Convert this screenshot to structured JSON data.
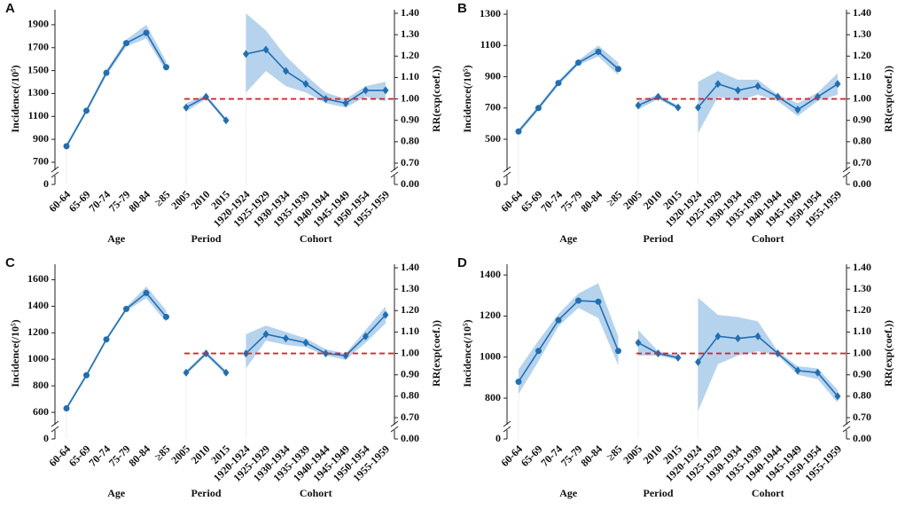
{
  "chart_data": [
    {
      "type": "apc",
      "panel": "A",
      "ylabel": "Incidence(/10⁵)",
      "y2label": "RR(exp(coef.))",
      "ylim": [
        692,
        2000
      ],
      "yticks": [
        700,
        900,
        1100,
        1300,
        1500,
        1700,
        1900
      ],
      "ybreak_tick": 0,
      "y2lim": [
        0.7,
        1.4
      ],
      "y2ticks": [
        {
          "value": 0.7,
          "label": "0.70"
        },
        {
          "value": 0.8,
          "label": "0.80"
        },
        {
          "value": 0.9,
          "label": "0.90"
        },
        {
          "value": 1.0,
          "label": "1.00"
        },
        {
          "value": 1.1,
          "label": "1.10"
        },
        {
          "value": 1.2,
          "label": "1.20"
        },
        {
          "value": 1.3,
          "label": "1.30"
        },
        {
          "value": 1.4,
          "label": "1.40"
        }
      ],
      "y2break_tick": {
        "value": 0,
        "label": "0.00"
      },
      "reference_line": 1,
      "color": "#1f6fb5",
      "band_color": "#a9cbea",
      "reference_color": "#d62728",
      "groups": [
        {
          "label": "Age",
          "axis": "y",
          "categories": [
            "60-64",
            "65-69",
            "70-74",
            "75-79",
            "80-84",
            "≥85"
          ],
          "values": [
            840,
            1150,
            1480,
            1740,
            1830,
            1530
          ],
          "lower": [
            820,
            1130,
            1455,
            1710,
            1780,
            1490
          ],
          "upper": [
            860,
            1170,
            1505,
            1770,
            1900,
            1580
          ]
        },
        {
          "label": "Period",
          "axis": "y2",
          "categories": [
            "2005",
            "2010",
            "2015"
          ],
          "values": [
            0.96,
            1.01,
            0.9
          ],
          "lower": [
            0.94,
            1.0,
            0.89
          ],
          "upper": [
            0.98,
            1.02,
            0.91
          ]
        },
        {
          "label": "Cohort",
          "axis": "y2",
          "categories": [
            "1920-1924",
            "1925-1929",
            "1930-1934",
            "1935-1939",
            "1940-1944",
            "1945-1949",
            "1950-1954",
            "1955-1959"
          ],
          "values": [
            1.21,
            1.23,
            1.13,
            1.07,
            1.0,
            0.98,
            1.04,
            1.04
          ],
          "lower": [
            1.03,
            1.13,
            1.06,
            1.03,
            0.98,
            0.96,
            1.01,
            0.99
          ],
          "upper": [
            1.4,
            1.32,
            1.2,
            1.11,
            1.03,
            1.0,
            1.06,
            1.08
          ]
        }
      ]
    },
    {
      "type": "apc",
      "panel": "B",
      "ylabel": "Incidence(/10⁵)",
      "y2label": "RR(exp(coef.))",
      "ylim": [
        347,
        1306
      ],
      "yticks": [
        500,
        700,
        900,
        1100,
        1300
      ],
      "ybreak_tick": 0,
      "y2lim": [
        0.7,
        1.4
      ],
      "y2ticks": [
        {
          "value": 0.7,
          "label": "0.70"
        },
        {
          "value": 0.8,
          "label": "0.80"
        },
        {
          "value": 0.9,
          "label": "0.90"
        },
        {
          "value": 1.0,
          "label": "1.00"
        },
        {
          "value": 1.1,
          "label": "1.10"
        },
        {
          "value": 1.2,
          "label": "1.20"
        },
        {
          "value": 1.3,
          "label": "1.30"
        },
        {
          "value": 1.4,
          "label": "1.40"
        }
      ],
      "y2break_tick": {
        "value": 0,
        "label": "0.00"
      },
      "reference_line": 1,
      "color": "#1f6fb5",
      "band_color": "#a9cbea",
      "reference_color": "#d62728",
      "groups": [
        {
          "label": "Age",
          "axis": "y",
          "categories": [
            "60-64",
            "65-69",
            "70-74",
            "75-79",
            "80-84",
            "≥85"
          ],
          "values": [
            550,
            700,
            860,
            990,
            1060,
            950
          ],
          "lower": [
            535,
            685,
            845,
            975,
            1030,
            910
          ],
          "upper": [
            565,
            715,
            875,
            1005,
            1100,
            990
          ]
        },
        {
          "label": "Period",
          "axis": "y2",
          "categories": [
            "2005",
            "2010",
            "2015"
          ],
          "values": [
            0.97,
            1.01,
            0.96
          ],
          "lower": [
            0.95,
            1.0,
            0.95
          ],
          "upper": [
            0.99,
            1.02,
            0.97
          ]
        },
        {
          "label": "Cohort",
          "axis": "y2",
          "categories": [
            "1920-1924",
            "1925-1929",
            "1930-1934",
            "1935-1939",
            "1940-1944",
            "1945-1949",
            "1950-1954",
            "1955-1959"
          ],
          "values": [
            0.96,
            1.07,
            1.04,
            1.06,
            1.01,
            0.95,
            1.01,
            1.07
          ],
          "lower": [
            0.84,
            1.01,
            0.99,
            1.02,
            0.99,
            0.92,
            0.99,
            1.02
          ],
          "upper": [
            1.08,
            1.13,
            1.09,
            1.09,
            1.02,
            0.98,
            1.03,
            1.12
          ]
        }
      ]
    },
    {
      "type": "apc",
      "panel": "C",
      "ylabel": "Incidence(/10⁵)",
      "y2label": "RR(exp(coef.))",
      "ylim": [
        560,
        1690
      ],
      "yticks": [
        600,
        800,
        1000,
        1200,
        1400,
        1600
      ],
      "ybreak_tick": 0,
      "y2lim": [
        0.7,
        1.4
      ],
      "y2ticks": [
        {
          "value": 0.7,
          "label": "0.70"
        },
        {
          "value": 0.8,
          "label": "0.80"
        },
        {
          "value": 0.9,
          "label": "0.90"
        },
        {
          "value": 1.0,
          "label": "1.00"
        },
        {
          "value": 1.1,
          "label": "1.10"
        },
        {
          "value": 1.2,
          "label": "1.20"
        },
        {
          "value": 1.3,
          "label": "1.30"
        },
        {
          "value": 1.4,
          "label": "1.40"
        }
      ],
      "y2break_tick": {
        "value": 0,
        "label": "0.00"
      },
      "reference_line": 1,
      "color": "#1f6fb5",
      "band_color": "#a9cbea",
      "reference_color": "#d62728",
      "groups": [
        {
          "label": "Age",
          "axis": "y",
          "categories": [
            "60-64",
            "65-69",
            "70-74",
            "75-79",
            "80-84",
            "≥85"
          ],
          "values": [
            630,
            880,
            1150,
            1380,
            1500,
            1320
          ],
          "lower": [
            615,
            865,
            1135,
            1365,
            1460,
            1280
          ],
          "upper": [
            645,
            895,
            1165,
            1395,
            1550,
            1370
          ]
        },
        {
          "label": "Period",
          "axis": "y2",
          "categories": [
            "2005",
            "2010",
            "2015"
          ],
          "values": [
            0.91,
            1.0,
            0.91
          ],
          "lower": [
            0.9,
            0.99,
            0.9
          ],
          "upper": [
            0.92,
            1.01,
            0.92
          ]
        },
        {
          "label": "Cohort",
          "axis": "y2",
          "categories": [
            "1920-1924",
            "1925-1929",
            "1930-1934",
            "1935-1939",
            "1940-1944",
            "1945-1949",
            "1950-1954",
            "1955-1959"
          ],
          "values": [
            1.0,
            1.09,
            1.07,
            1.05,
            1.0,
            0.99,
            1.08,
            1.18
          ],
          "lower": [
            0.93,
            1.06,
            1.04,
            1.03,
            0.99,
            0.97,
            1.05,
            1.14
          ],
          "upper": [
            1.09,
            1.13,
            1.1,
            1.07,
            1.02,
            1.0,
            1.11,
            1.22
          ]
        }
      ]
    },
    {
      "type": "apc",
      "panel": "D",
      "ylabel": "Incidence(/10⁵)",
      "y2label": "RR(exp(coef.))",
      "ylim": [
        705,
        1435
      ],
      "yticks": [
        800,
        1000,
        1200,
        1400
      ],
      "ybreak_tick": 0,
      "y2lim": [
        0.7,
        1.4
      ],
      "y2ticks": [
        {
          "value": 0.7,
          "label": "0.70"
        },
        {
          "value": 0.8,
          "label": "0.80"
        },
        {
          "value": 0.9,
          "label": "0.90"
        },
        {
          "value": 1.0,
          "label": "1.00"
        },
        {
          "value": 1.1,
          "label": "1.10"
        },
        {
          "value": 1.2,
          "label": "1.20"
        },
        {
          "value": 1.3,
          "label": "1.30"
        },
        {
          "value": 1.4,
          "label": "1.40"
        }
      ],
      "y2break_tick": {
        "value": 0,
        "label": "0.00"
      },
      "reference_line": 1,
      "color": "#1f6fb5",
      "band_color": "#a9cbea",
      "reference_color": "#d62728",
      "groups": [
        {
          "label": "Age",
          "axis": "y",
          "categories": [
            "60-64",
            "65-69",
            "70-74",
            "75-79",
            "80-84",
            "≥85"
          ],
          "values": [
            880,
            1030,
            1180,
            1275,
            1270,
            1030
          ],
          "lower": [
            820,
            980,
            1150,
            1240,
            1190,
            960
          ],
          "upper": [
            940,
            1080,
            1210,
            1310,
            1360,
            1100
          ]
        },
        {
          "label": "Period",
          "axis": "y2",
          "categories": [
            "2005",
            "2010",
            "2015"
          ],
          "values": [
            1.05,
            1.0,
            0.98
          ],
          "lower": [
            0.99,
            0.99,
            0.97
          ],
          "upper": [
            1.11,
            1.01,
            0.99
          ]
        },
        {
          "label": "Cohort",
          "axis": "y2",
          "categories": [
            "1920-1924",
            "1925-1929",
            "1930-1934",
            "1935-1939",
            "1940-1944",
            "1945-1949",
            "1950-1954",
            "1955-1959"
          ],
          "values": [
            0.96,
            1.08,
            1.07,
            1.08,
            1.0,
            0.92,
            0.91,
            0.8
          ],
          "lower": [
            0.73,
            0.95,
            0.99,
            1.01,
            0.99,
            0.9,
            0.88,
            0.77
          ],
          "upper": [
            1.26,
            1.18,
            1.17,
            1.15,
            1.01,
            0.94,
            0.93,
            0.83
          ]
        }
      ]
    }
  ]
}
